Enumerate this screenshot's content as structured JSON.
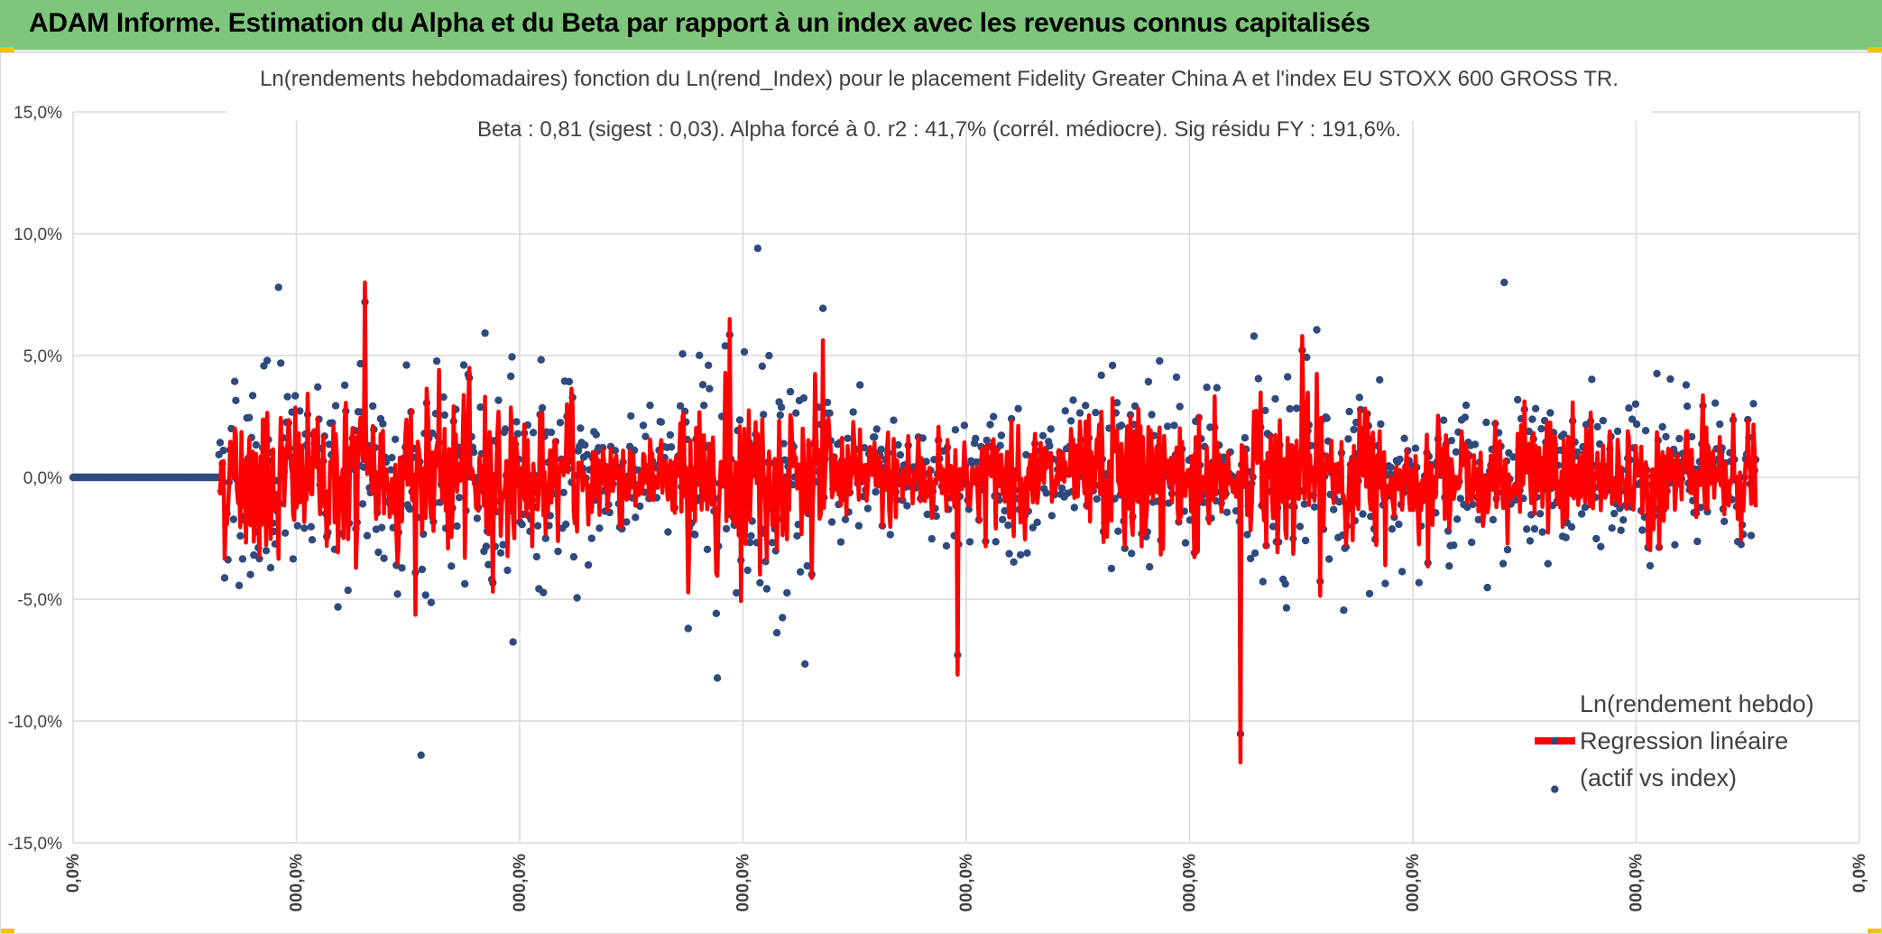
{
  "banner": {
    "title": "ADAM Informe. Estimation du Alpha et du Beta par rapport à un index avec les revenus connus capitalisés",
    "color": "#7dc67b"
  },
  "chart_data": {
    "type": "line+scatter",
    "title_line1": "Ln(rendements hebdomadaires) fonction du Ln(rend_Index) pour le placement Fidelity Greater China A  et l'index EU STOXX 600 GROSS TR.",
    "title_line2": "Beta : 0,81 (sigest : 0,03). Alpha forcé à 0. r2 : 41,7% (corrél. médiocre). Sig résidu FY : 191,6%.",
    "ylim": [
      -0.15,
      0.15
    ],
    "y_ticks": [
      {
        "value": 0.15,
        "label": "15,0%"
      },
      {
        "value": 0.1,
        "label": "10,0%"
      },
      {
        "value": 0.05,
        "label": "5,0%"
      },
      {
        "value": 0.0,
        "label": "0,0%"
      },
      {
        "value": -0.05,
        "label": "-5,0%"
      },
      {
        "value": -0.1,
        "label": "-10,0%"
      },
      {
        "value": -0.15,
        "label": "-15,0%"
      }
    ],
    "x_ticks": [
      "0,0%",
      "000,0%",
      "000,0%",
      "000,0%",
      "000,0%",
      "000,0%",
      "000,0%",
      "000,0%",
      "0,0%"
    ],
    "series": [
      {
        "name": "Ln(rendement hebdo)",
        "kind": "scatter",
        "color": "#2e4a7e"
      },
      {
        "name": "Regression linéaire (actif vs index)",
        "kind": "line",
        "color": "#ff0000"
      }
    ],
    "legend": [
      {
        "label_lines": [
          "Ln(rendement hebdo)"
        ]
      },
      {
        "label_lines": [
          "Regression linéaire",
          "(actif vs index)"
        ]
      }
    ],
    "n_points": 1500,
    "zero_run_points": 130,
    "notable_points": [
      {
        "i": 183,
        "y": 0.078,
        "series": "scatter"
      },
      {
        "i": 610,
        "y": 0.094,
        "series": "scatter"
      },
      {
        "i": 1275,
        "y": 0.08,
        "series": "scatter"
      },
      {
        "i": 310,
        "y": -0.114,
        "series": "scatter"
      },
      {
        "i": 1040,
        "y": -0.117,
        "series": "line"
      },
      {
        "i": 1320,
        "y": -0.128,
        "series": "scatter"
      },
      {
        "i": 260,
        "y": 0.08,
        "series": "line"
      },
      {
        "i": 1095,
        "y": 0.058,
        "series": "line"
      },
      {
        "i": 585,
        "y": 0.065,
        "series": "line"
      },
      {
        "i": 788,
        "y": -0.081,
        "series": "line"
      }
    ]
  }
}
